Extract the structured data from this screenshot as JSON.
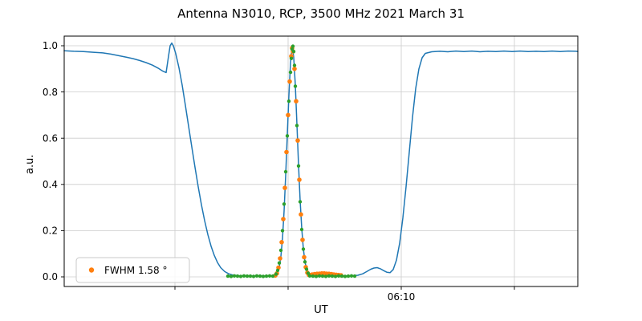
{
  "chart_data": {
    "type": "line",
    "title": "Antenna N3010, RCP, 3500 MHz 2021 March 31",
    "xlabel": "UT",
    "ylabel": "a.u.",
    "grid": true,
    "legend": {
      "label": "FWHM 1.58 °",
      "marker_color": "#ff7f0e",
      "position": "lower left"
    },
    "ylim": [
      -0.0417,
      1.0417
    ],
    "y_ticks": [
      {
        "value": 0.0,
        "label": "0.0"
      },
      {
        "value": 0.2,
        "label": "0.2"
      },
      {
        "value": 0.4,
        "label": "0.4"
      },
      {
        "value": 0.6,
        "label": "0.6"
      },
      {
        "value": 0.8,
        "label": "0.8"
      },
      {
        "value": 1.0,
        "label": "1.0"
      }
    ],
    "x_ticks": [
      {
        "pos": 0.2156,
        "label": ""
      },
      {
        "pos": 0.4359,
        "label": ""
      },
      {
        "pos": 0.6563,
        "label": "06:10"
      },
      {
        "pos": 0.8766,
        "label": ""
      }
    ],
    "series": [
      {
        "name": "drift-scan-signal",
        "type": "line",
        "color": "#1f77b4",
        "width": 1.5,
        "points": [
          [
            0.0,
            0.978
          ],
          [
            0.0188,
            0.976
          ],
          [
            0.0375,
            0.975
          ],
          [
            0.0563,
            0.972
          ],
          [
            0.075,
            0.969
          ],
          [
            0.0906,
            0.964
          ],
          [
            0.1063,
            0.957
          ],
          [
            0.1219,
            0.95
          ],
          [
            0.1344,
            0.944
          ],
          [
            0.1469,
            0.936
          ],
          [
            0.1594,
            0.927
          ],
          [
            0.1719,
            0.916
          ],
          [
            0.1828,
            0.903
          ],
          [
            0.1922,
            0.89
          ],
          [
            0.1984,
            0.884
          ],
          [
            0.2031,
            0.955
          ],
          [
            0.2063,
            1.0
          ],
          [
            0.2094,
            1.012
          ],
          [
            0.2125,
            1.0
          ],
          [
            0.2172,
            0.966
          ],
          [
            0.2234,
            0.905
          ],
          [
            0.2297,
            0.83
          ],
          [
            0.2359,
            0.742
          ],
          [
            0.2422,
            0.652
          ],
          [
            0.2484,
            0.562
          ],
          [
            0.2547,
            0.474
          ],
          [
            0.2609,
            0.39
          ],
          [
            0.2672,
            0.312
          ],
          [
            0.2734,
            0.243
          ],
          [
            0.2797,
            0.183
          ],
          [
            0.2859,
            0.133
          ],
          [
            0.2922,
            0.093
          ],
          [
            0.2984,
            0.062
          ],
          [
            0.3047,
            0.04
          ],
          [
            0.3125,
            0.023
          ],
          [
            0.3203,
            0.013
          ],
          [
            0.3281,
            0.008
          ],
          [
            0.3406,
            0.005
          ],
          [
            0.3594,
            0.003
          ],
          [
            0.3781,
            0.004
          ],
          [
            0.3969,
            0.003
          ],
          [
            0.4094,
            0.006
          ],
          [
            0.4156,
            0.018
          ],
          [
            0.4188,
            0.042
          ],
          [
            0.4219,
            0.088
          ],
          [
            0.425,
            0.165
          ],
          [
            0.4281,
            0.285
          ],
          [
            0.4313,
            0.44
          ],
          [
            0.4344,
            0.615
          ],
          [
            0.4375,
            0.785
          ],
          [
            0.4406,
            0.925
          ],
          [
            0.4438,
            1.0
          ],
          [
            0.4469,
            0.95
          ],
          [
            0.45,
            0.83
          ],
          [
            0.4531,
            0.66
          ],
          [
            0.4563,
            0.485
          ],
          [
            0.4594,
            0.33
          ],
          [
            0.4625,
            0.21
          ],
          [
            0.4656,
            0.122
          ],
          [
            0.4688,
            0.066
          ],
          [
            0.4719,
            0.034
          ],
          [
            0.475,
            0.017
          ],
          [
            0.4797,
            0.009
          ],
          [
            0.4875,
            0.005
          ],
          [
            0.5031,
            0.004
          ],
          [
            0.5219,
            0.003
          ],
          [
            0.5406,
            0.004
          ],
          [
            0.5594,
            0.004
          ],
          [
            0.5719,
            0.007
          ],
          [
            0.5813,
            0.013
          ],
          [
            0.5891,
            0.023
          ],
          [
            0.5969,
            0.033
          ],
          [
            0.6031,
            0.038
          ],
          [
            0.6094,
            0.04
          ],
          [
            0.6156,
            0.035
          ],
          [
            0.6219,
            0.027
          ],
          [
            0.6281,
            0.02
          ],
          [
            0.6344,
            0.018
          ],
          [
            0.6406,
            0.032
          ],
          [
            0.6469,
            0.072
          ],
          [
            0.6531,
            0.145
          ],
          [
            0.6594,
            0.255
          ],
          [
            0.6656,
            0.39
          ],
          [
            0.6719,
            0.54
          ],
          [
            0.6781,
            0.69
          ],
          [
            0.6844,
            0.815
          ],
          [
            0.6906,
            0.9
          ],
          [
            0.6969,
            0.948
          ],
          [
            0.7031,
            0.967
          ],
          [
            0.7156,
            0.974
          ],
          [
            0.7313,
            0.976
          ],
          [
            0.7469,
            0.974
          ],
          [
            0.7625,
            0.977
          ],
          [
            0.7781,
            0.975
          ],
          [
            0.7938,
            0.977
          ],
          [
            0.8094,
            0.974
          ],
          [
            0.825,
            0.976
          ],
          [
            0.8406,
            0.975
          ],
          [
            0.8563,
            0.977
          ],
          [
            0.8719,
            0.975
          ],
          [
            0.8875,
            0.977
          ],
          [
            0.9031,
            0.975
          ],
          [
            0.9188,
            0.976
          ],
          [
            0.9344,
            0.975
          ],
          [
            0.95,
            0.977
          ],
          [
            0.9656,
            0.975
          ],
          [
            0.9813,
            0.977
          ],
          [
            0.9969,
            0.976
          ],
          [
            1.0,
            0.975
          ]
        ]
      },
      {
        "name": "gaussian-fit-orange",
        "type": "scatter",
        "color": "#ff7f0e",
        "radius": 2.8,
        "points": [
          [
            0.4109,
            0.006
          ],
          [
            0.4141,
            0.015
          ],
          [
            0.4172,
            0.04
          ],
          [
            0.4203,
            0.08
          ],
          [
            0.4234,
            0.15
          ],
          [
            0.4266,
            0.25
          ],
          [
            0.4297,
            0.385
          ],
          [
            0.4328,
            0.54
          ],
          [
            0.4359,
            0.7
          ],
          [
            0.4391,
            0.845
          ],
          [
            0.4422,
            0.955
          ],
          [
            0.4438,
            0.99
          ],
          [
            0.4453,
            0.975
          ],
          [
            0.4484,
            0.9
          ],
          [
            0.4516,
            0.76
          ],
          [
            0.4547,
            0.59
          ],
          [
            0.4578,
            0.42
          ],
          [
            0.4609,
            0.27
          ],
          [
            0.4641,
            0.16
          ],
          [
            0.4672,
            0.085
          ],
          [
            0.4703,
            0.042
          ],
          [
            0.4734,
            0.018
          ],
          [
            0.4766,
            0.008
          ],
          [
            0.4781,
            0.008
          ],
          [
            0.4828,
            0.01
          ],
          [
            0.4875,
            0.012
          ],
          [
            0.4922,
            0.013
          ],
          [
            0.4969,
            0.014
          ],
          [
            0.5016,
            0.015
          ],
          [
            0.5063,
            0.015
          ],
          [
            0.5109,
            0.014
          ],
          [
            0.5156,
            0.013
          ],
          [
            0.5203,
            0.012
          ],
          [
            0.525,
            0.01
          ],
          [
            0.5297,
            0.009
          ],
          [
            0.5344,
            0.008
          ],
          [
            0.5391,
            0.007
          ]
        ]
      },
      {
        "name": "selected-points-green",
        "type": "scatter",
        "color": "#2ca02c",
        "radius": 2.2,
        "points": [
          [
            0.3188,
            0.003
          ],
          [
            0.325,
            0.002
          ],
          [
            0.3313,
            0.004
          ],
          [
            0.3375,
            0.003
          ],
          [
            0.3438,
            0.002
          ],
          [
            0.35,
            0.004
          ],
          [
            0.3563,
            0.003
          ],
          [
            0.3625,
            0.003
          ],
          [
            0.3688,
            0.002
          ],
          [
            0.375,
            0.004
          ],
          [
            0.3813,
            0.003
          ],
          [
            0.3875,
            0.002
          ],
          [
            0.3938,
            0.003
          ],
          [
            0.4,
            0.004
          ],
          [
            0.4063,
            0.003
          ],
          [
            0.4125,
            0.012
          ],
          [
            0.4156,
            0.028
          ],
          [
            0.4188,
            0.06
          ],
          [
            0.4219,
            0.115
          ],
          [
            0.425,
            0.2
          ],
          [
            0.4281,
            0.315
          ],
          [
            0.4313,
            0.455
          ],
          [
            0.4344,
            0.61
          ],
          [
            0.4375,
            0.76
          ],
          [
            0.4406,
            0.885
          ],
          [
            0.4422,
            0.945
          ],
          [
            0.4438,
            0.985
          ],
          [
            0.4453,
            0.998
          ],
          [
            0.4469,
            0.975
          ],
          [
            0.4484,
            0.915
          ],
          [
            0.45,
            0.825
          ],
          [
            0.4531,
            0.655
          ],
          [
            0.4563,
            0.48
          ],
          [
            0.4594,
            0.325
          ],
          [
            0.4625,
            0.205
          ],
          [
            0.4656,
            0.12
          ],
          [
            0.4688,
            0.065
          ],
          [
            0.4719,
            0.033
          ],
          [
            0.475,
            0.016
          ],
          [
            0.4781,
            0.004
          ],
          [
            0.4844,
            0.003
          ],
          [
            0.4906,
            0.002
          ],
          [
            0.4969,
            0.004
          ],
          [
            0.5031,
            0.003
          ],
          [
            0.5094,
            0.002
          ],
          [
            0.5156,
            0.004
          ],
          [
            0.5219,
            0.003
          ],
          [
            0.5281,
            0.002
          ],
          [
            0.5344,
            0.004
          ],
          [
            0.5406,
            0.003
          ],
          [
            0.5469,
            0.002
          ],
          [
            0.5531,
            0.003
          ],
          [
            0.5594,
            0.004
          ],
          [
            0.5656,
            0.003
          ]
        ]
      }
    ]
  }
}
